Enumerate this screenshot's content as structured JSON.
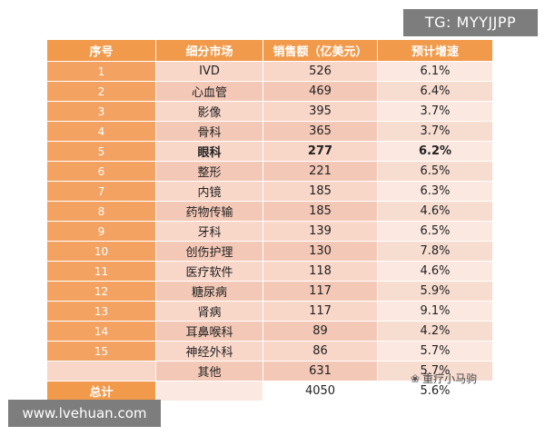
{
  "overlay_tag": "TG: MYYJJPP",
  "site_tag": "www.lvehuan.com",
  "watermark": "重疗小马驹",
  "table": {
    "headers": [
      "序号",
      "细分市场",
      "销售额（亿美元）",
      "预计增速"
    ],
    "rows": [
      {
        "num": "1",
        "segment": "IVD",
        "sales": "526",
        "growth": "6.1%"
      },
      {
        "num": "2",
        "segment": "心血管",
        "sales": "469",
        "growth": "6.4%"
      },
      {
        "num": "3",
        "segment": "影像",
        "sales": "395",
        "growth": "3.7%"
      },
      {
        "num": "4",
        "segment": "骨科",
        "sales": "365",
        "growth": "3.7%"
      },
      {
        "num": "5",
        "segment": "眼科",
        "sales": "277",
        "growth": "6.2%",
        "highlight": true
      },
      {
        "num": "6",
        "segment": "整形",
        "sales": "221",
        "growth": "6.5%"
      },
      {
        "num": "7",
        "segment": "内镜",
        "sales": "185",
        "growth": "6.3%"
      },
      {
        "num": "8",
        "segment": "药物传输",
        "sales": "185",
        "growth": "4.6%"
      },
      {
        "num": "9",
        "segment": "牙科",
        "sales": "139",
        "growth": "6.5%"
      },
      {
        "num": "10",
        "segment": "创伤护理",
        "sales": "130",
        "growth": "7.8%"
      },
      {
        "num": "11",
        "segment": "医疗软件",
        "sales": "118",
        "growth": "4.6%"
      },
      {
        "num": "12",
        "segment": "糖尿病",
        "sales": "117",
        "growth": "5.9%"
      },
      {
        "num": "13",
        "segment": "肾病",
        "sales": "117",
        "growth": "9.1%"
      },
      {
        "num": "14",
        "segment": "耳鼻喉科",
        "sales": "89",
        "growth": "4.2%"
      },
      {
        "num": "15",
        "segment": "神经外科",
        "sales": "86",
        "growth": "5.7%"
      },
      {
        "num": "",
        "segment": "其他",
        "sales": "631",
        "growth": "5.7%"
      }
    ],
    "total": {
      "label": "总计",
      "sales": "4050",
      "growth": "5.6%"
    }
  }
}
